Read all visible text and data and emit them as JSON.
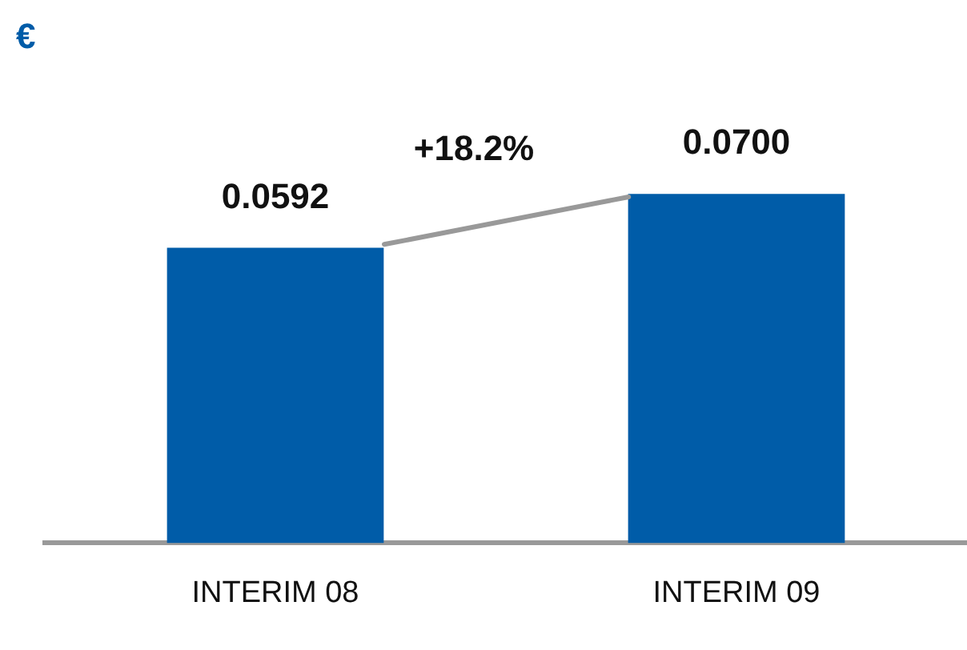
{
  "chart_data": {
    "type": "bar",
    "ylabel": "€",
    "categories": [
      "INTERIM 08",
      "INTERIM 09"
    ],
    "values": [
      0.0592,
      0.07
    ],
    "value_labels": [
      "0.0592",
      "0.0700"
    ],
    "color": "#005ca8",
    "grid": false,
    "legend": false,
    "annotations": [
      "+18.2%"
    ]
  }
}
